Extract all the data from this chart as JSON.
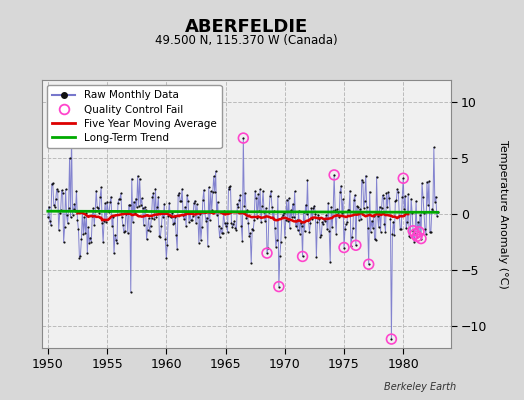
{
  "title": "ABERFELDIE",
  "subtitle": "49.500 N, 115.370 W (Canada)",
  "ylabel": "Temperature Anomaly (°C)",
  "credit": "Berkeley Earth",
  "xlim": [
    1949.5,
    1984.0
  ],
  "ylim": [
    -12,
    12
  ],
  "yticks": [
    -10,
    -5,
    0,
    5,
    10
  ],
  "xticks": [
    1950,
    1955,
    1960,
    1965,
    1970,
    1975,
    1980
  ],
  "bg_color": "#d8d8d8",
  "plot_bg_color": "#f0f0f0",
  "raw_line_color": "#7777cc",
  "dot_color": "#111111",
  "qc_color": "#ff44cc",
  "ma_color": "#dd0000",
  "trend_color": "#00aa00",
  "grid_color": "#bbbbbb",
  "seed": 12345,
  "n_months": 396,
  "start_year": 1950,
  "trend_slope": -0.003,
  "trend_intercept": 0.25
}
